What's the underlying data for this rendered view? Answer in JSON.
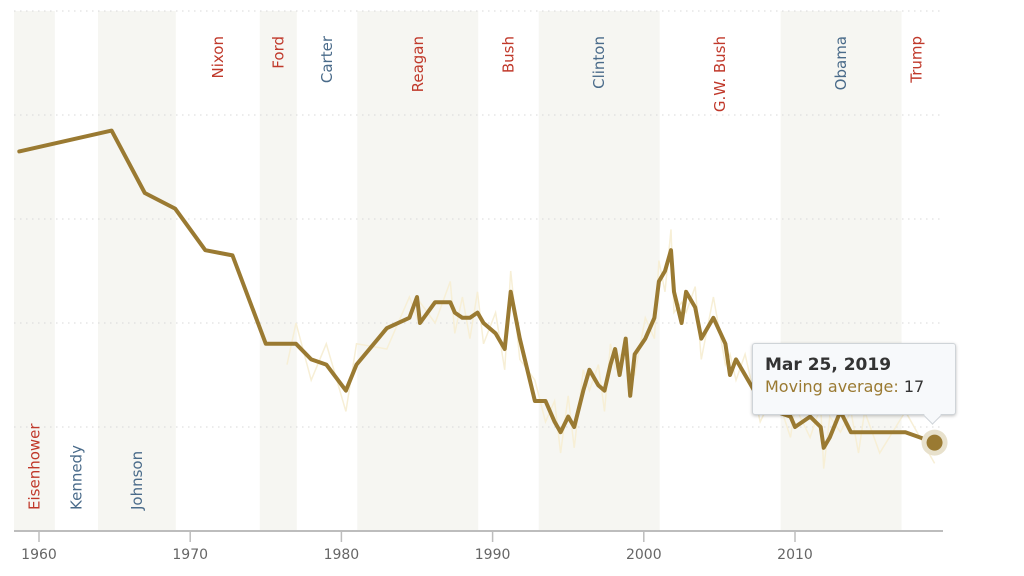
{
  "chart_data": {
    "type": "line",
    "title": "",
    "xlabel": "",
    "ylabel": "",
    "xlim": [
      1958.4,
      2020
    ],
    "ylim": [
      0,
      100
    ],
    "x_ticks": [
      1960,
      1970,
      1980,
      1990,
      2000,
      2010
    ],
    "x_tick_labels": [
      "1960",
      "1970",
      "1980",
      "1990",
      "2000",
      "2010"
    ],
    "y_gridlines": [
      20,
      40,
      60,
      80,
      100
    ],
    "y_tick_labels_visible": false,
    "grid": true,
    "legend": "none",
    "series": [
      {
        "name": "Moving average",
        "color": "#9a7a32",
        "x": [
          1958.7,
          1964.8,
          1967.0,
          1969.0,
          1971.0,
          1972.8,
          1975.0,
          1976.4,
          1977.0,
          1978.0,
          1979.0,
          1980.3,
          1981.0,
          1983.0,
          1984.5,
          1985.0,
          1985.2,
          1986.2,
          1987.2,
          1987.5,
          1988.0,
          1988.5,
          1989.0,
          1989.4,
          1990.2,
          1990.8,
          1991.2,
          1991.8,
          1992.8,
          1993.5,
          1994.1,
          1994.5,
          1995.0,
          1995.4,
          1996.0,
          1996.4,
          1997.0,
          1997.4,
          1997.8,
          1998.1,
          1998.4,
          1998.8,
          1999.1,
          1999.4,
          2000.1,
          2000.7,
          2001.0,
          2001.4,
          2001.8,
          2002.0,
          2002.5,
          2002.8,
          2003.4,
          2003.8,
          2004.6,
          2005.4,
          2005.7,
          2006.1,
          2006.7,
          2007.7,
          2008.7,
          2009.7,
          2010.0,
          2011.0,
          2011.7,
          2011.9,
          2012.3,
          2013.0,
          2013.7,
          2014.2,
          2014.6,
          2015.6,
          2017.3,
          2019.23
        ],
        "values": [
          73,
          77,
          65,
          62,
          54,
          53,
          36,
          36,
          36,
          33,
          32,
          27,
          32,
          39,
          41,
          45,
          40,
          44,
          44,
          42,
          41,
          41,
          42,
          40,
          38,
          35,
          46,
          37,
          25,
          25,
          21,
          19,
          22,
          20,
          27,
          31,
          28,
          27,
          32,
          35,
          30,
          37,
          26,
          34,
          37,
          41,
          48,
          50,
          54,
          46,
          40,
          46,
          43,
          37,
          41,
          36,
          30,
          33,
          30,
          25,
          23,
          22,
          20,
          22,
          20,
          16,
          18,
          23,
          19,
          19,
          19,
          19,
          19,
          17
        ]
      }
    ],
    "presidencies": [
      {
        "name": "Eisenhower",
        "party": "R",
        "start": 1953.05,
        "end": 1961.05,
        "shaded": true,
        "label_position": "bottom"
      },
      {
        "name": "Kennedy",
        "party": "D",
        "start": 1961.05,
        "end": 1963.9,
        "shaded": false,
        "label_position": "bottom"
      },
      {
        "name": "Johnson",
        "party": "D",
        "start": 1963.9,
        "end": 1969.05,
        "shaded": true,
        "label_position": "bottom"
      },
      {
        "name": "Nixon",
        "party": "R",
        "start": 1969.05,
        "end": 1974.6,
        "shaded": false,
        "label_position": "top"
      },
      {
        "name": "Ford",
        "party": "R",
        "start": 1974.6,
        "end": 1977.05,
        "shaded": true,
        "label_position": "top"
      },
      {
        "name": "Carter",
        "party": "D",
        "start": 1977.05,
        "end": 1981.05,
        "shaded": false,
        "label_position": "top"
      },
      {
        "name": "Reagan",
        "party": "R",
        "start": 1981.05,
        "end": 1989.05,
        "shaded": true,
        "label_position": "top"
      },
      {
        "name": "Bush",
        "party": "R",
        "start": 1989.05,
        "end": 1993.05,
        "shaded": false,
        "label_position": "top"
      },
      {
        "name": "Clinton",
        "party": "D",
        "start": 1993.05,
        "end": 2001.05,
        "shaded": true,
        "label_position": "top"
      },
      {
        "name": "G.W. Bush",
        "party": "R",
        "start": 2001.05,
        "end": 2009.05,
        "shaded": false,
        "label_position": "top"
      },
      {
        "name": "Obama",
        "party": "D",
        "start": 2009.05,
        "end": 2017.05,
        "shaded": true,
        "label_position": "top"
      },
      {
        "name": "Trump",
        "party": "R",
        "start": 2017.05,
        "end": 2020,
        "shaded": false,
        "label_position": "top"
      }
    ],
    "party_colors": {
      "R": "#c0392b",
      "D": "#4a6b8a"
    },
    "band_color": "#f6f6f2",
    "highlight_point": {
      "x": 2019.23,
      "value": 17
    }
  },
  "tooltip": {
    "date": "Mar 25, 2019",
    "label": "Moving average:",
    "value": "17"
  }
}
